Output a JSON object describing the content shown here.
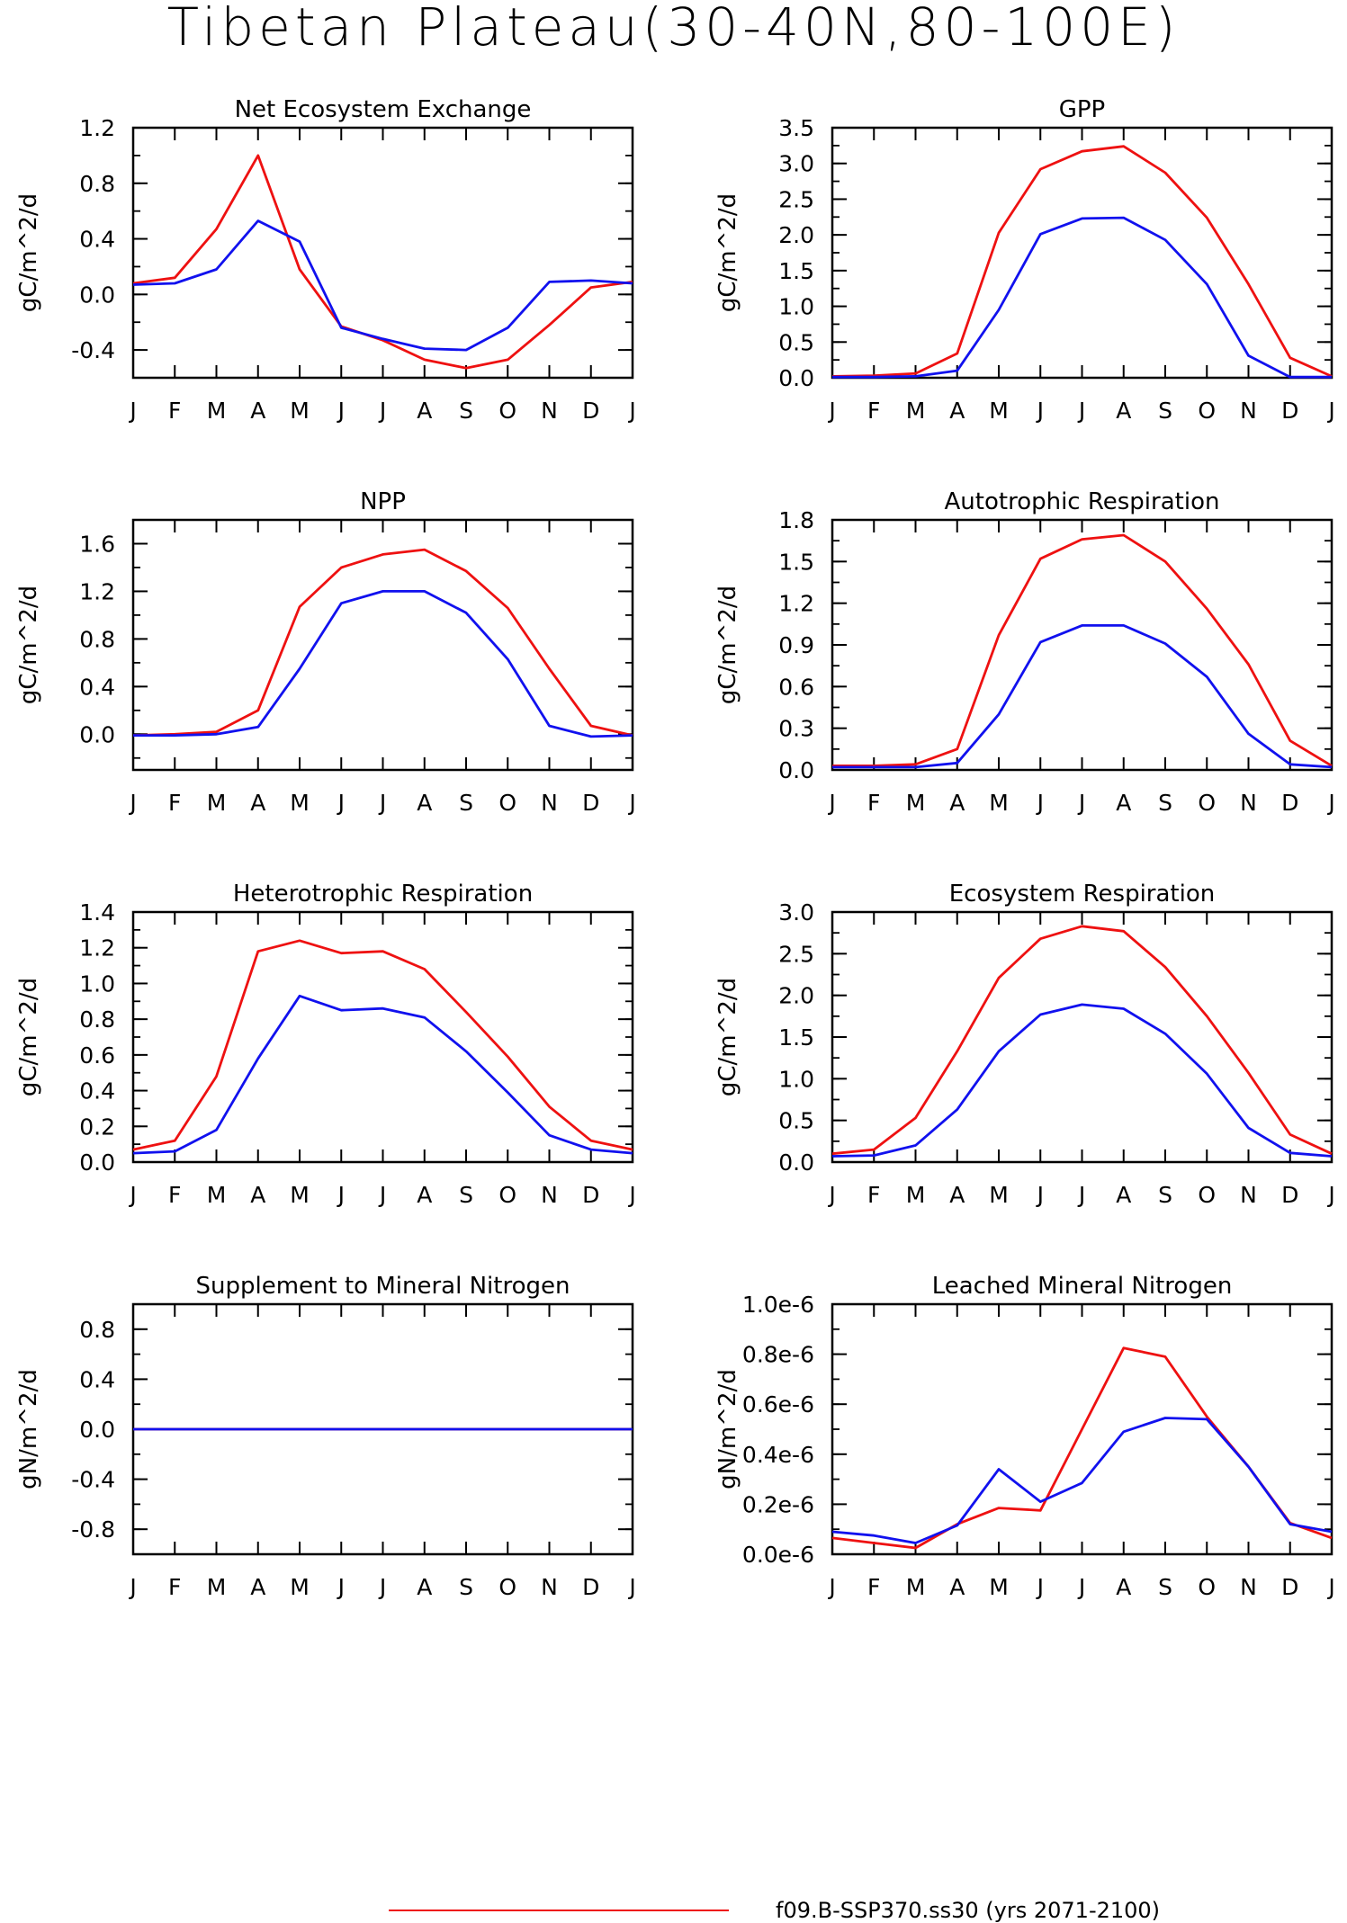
{
  "title": "Tibetan Plateau(30-40N,80-100E)",
  "colors": {
    "red": "#ee1111",
    "blue": "#1111ee",
    "axis": "#000000"
  },
  "legend": {
    "red_label": "f09.B-SSP370.ss30 (yrs 2071-2100)"
  },
  "chart_data": [
    {
      "type": "line",
      "title": "Net Ecosystem Exchange",
      "ylabel": "gC/m^2/d",
      "ylim": [
        -0.6,
        1.2
      ],
      "yticks": [
        -0.4,
        0.0,
        0.4,
        0.8,
        1.2
      ],
      "yticklabels": [
        "-0.4",
        "0.0",
        "0.4",
        "0.8",
        "1.2"
      ],
      "yminor": 0.2,
      "categories": [
        "J",
        "F",
        "M",
        "A",
        "M",
        "J",
        "J",
        "A",
        "S",
        "O",
        "N",
        "D",
        "J"
      ],
      "series": [
        {
          "color": "red",
          "values": [
            0.08,
            0.12,
            0.47,
            1.0,
            0.18,
            -0.23,
            -0.33,
            -0.47,
            -0.53,
            -0.47,
            -0.22,
            0.05,
            0.09
          ]
        },
        {
          "color": "blue",
          "values": [
            0.07,
            0.08,
            0.18,
            0.53,
            0.38,
            -0.24,
            -0.32,
            -0.39,
            -0.4,
            -0.24,
            0.09,
            0.1,
            0.08
          ]
        }
      ]
    },
    {
      "type": "line",
      "title": "GPP",
      "ylabel": "gC/m^2/d",
      "ylim": [
        0,
        3.5
      ],
      "yticks": [
        0,
        0.5,
        1.0,
        1.5,
        2.0,
        2.5,
        3.0,
        3.5
      ],
      "yticklabels": [
        "0.0",
        "0.5",
        "1.0",
        "1.5",
        "2.0",
        "2.5",
        "3.0",
        "3.5"
      ],
      "yminor": 0.25,
      "categories": [
        "J",
        "F",
        "M",
        "A",
        "M",
        "J",
        "J",
        "A",
        "S",
        "O",
        "N",
        "D",
        "J"
      ],
      "series": [
        {
          "color": "red",
          "values": [
            0.02,
            0.03,
            0.06,
            0.34,
            2.03,
            2.92,
            3.17,
            3.24,
            2.87,
            2.24,
            1.31,
            0.28,
            0.02
          ]
        },
        {
          "color": "blue",
          "values": [
            0.01,
            0.01,
            0.02,
            0.1,
            0.95,
            2.01,
            2.23,
            2.24,
            1.93,
            1.31,
            0.31,
            0.01,
            0.01
          ]
        }
      ]
    },
    {
      "type": "line",
      "title": "NPP",
      "ylabel": "gC/m^2/d",
      "ylim": [
        -0.3,
        1.8
      ],
      "yticks": [
        0.0,
        0.4,
        0.8,
        1.2,
        1.6
      ],
      "yticklabels": [
        "0.0",
        "0.4",
        "0.8",
        "1.2",
        "1.6"
      ],
      "yminor": 0.2,
      "categories": [
        "J",
        "F",
        "M",
        "A",
        "M",
        "J",
        "J",
        "A",
        "S",
        "O",
        "N",
        "D",
        "J"
      ],
      "series": [
        {
          "color": "red",
          "values": [
            -0.01,
            0.0,
            0.02,
            0.2,
            1.07,
            1.4,
            1.51,
            1.55,
            1.37,
            1.06,
            0.55,
            0.07,
            -0.01
          ]
        },
        {
          "color": "blue",
          "values": [
            -0.01,
            -0.01,
            0.0,
            0.06,
            0.55,
            1.1,
            1.2,
            1.2,
            1.02,
            0.63,
            0.07,
            -0.02,
            -0.01
          ]
        }
      ]
    },
    {
      "type": "line",
      "title": "Autotrophic Respiration",
      "ylabel": "gC/m^2/d",
      "ylim": [
        0,
        1.8
      ],
      "yticks": [
        0,
        0.3,
        0.6,
        0.9,
        1.2,
        1.5,
        1.8
      ],
      "yticklabels": [
        "0.0",
        "0.3",
        "0.6",
        "0.9",
        "1.2",
        "1.5",
        "1.8"
      ],
      "yminor": 0.15,
      "categories": [
        "J",
        "F",
        "M",
        "A",
        "M",
        "J",
        "J",
        "A",
        "S",
        "O",
        "N",
        "D",
        "J"
      ],
      "series": [
        {
          "color": "red",
          "values": [
            0.03,
            0.03,
            0.04,
            0.15,
            0.97,
            1.52,
            1.66,
            1.69,
            1.5,
            1.16,
            0.76,
            0.21,
            0.03
          ]
        },
        {
          "color": "blue",
          "values": [
            0.02,
            0.02,
            0.02,
            0.05,
            0.4,
            0.92,
            1.04,
            1.04,
            0.91,
            0.67,
            0.26,
            0.04,
            0.02
          ]
        }
      ]
    },
    {
      "type": "line",
      "title": "Heterotrophic Respiration",
      "ylabel": "gC/m^2/d",
      "ylim": [
        0,
        1.4
      ],
      "yticks": [
        0,
        0.2,
        0.4,
        0.6,
        0.8,
        1.0,
        1.2,
        1.4
      ],
      "yticklabels": [
        "0.0",
        "0.2",
        "0.4",
        "0.6",
        "0.8",
        "1.0",
        "1.2",
        "1.4"
      ],
      "yminor": 0.1,
      "categories": [
        "J",
        "F",
        "M",
        "A",
        "M",
        "J",
        "J",
        "A",
        "S",
        "O",
        "N",
        "D",
        "J"
      ],
      "series": [
        {
          "color": "red",
          "values": [
            0.07,
            0.12,
            0.48,
            1.18,
            1.24,
            1.17,
            1.18,
            1.08,
            0.84,
            0.59,
            0.31,
            0.12,
            0.07
          ]
        },
        {
          "color": "blue",
          "values": [
            0.05,
            0.06,
            0.18,
            0.58,
            0.93,
            0.85,
            0.86,
            0.81,
            0.62,
            0.39,
            0.15,
            0.07,
            0.05
          ]
        }
      ]
    },
    {
      "type": "line",
      "title": "Ecosystem Respiration",
      "ylabel": "gC/m^2/d",
      "ylim": [
        0,
        3.0
      ],
      "yticks": [
        0,
        0.5,
        1.0,
        1.5,
        2.0,
        2.5,
        3.0
      ],
      "yticklabels": [
        "0.0",
        "0.5",
        "1.0",
        "1.5",
        "2.0",
        "2.5",
        "3.0"
      ],
      "yminor": 0.25,
      "categories": [
        "J",
        "F",
        "M",
        "A",
        "M",
        "J",
        "J",
        "A",
        "S",
        "O",
        "N",
        "D",
        "J"
      ],
      "series": [
        {
          "color": "red",
          "values": [
            0.1,
            0.15,
            0.53,
            1.33,
            2.21,
            2.68,
            2.83,
            2.77,
            2.34,
            1.75,
            1.07,
            0.33,
            0.1
          ]
        },
        {
          "color": "blue",
          "values": [
            0.07,
            0.08,
            0.2,
            0.63,
            1.33,
            1.77,
            1.89,
            1.84,
            1.54,
            1.06,
            0.41,
            0.11,
            0.07
          ]
        }
      ]
    },
    {
      "type": "line",
      "title": "Supplement to Mineral Nitrogen",
      "ylabel": "gN/m^2/d",
      "ylim": [
        -1.0,
        1.0
      ],
      "yticks": [
        -0.8,
        -0.4,
        0.0,
        0.4,
        0.8
      ],
      "yticklabels": [
        "-0.8",
        "-0.4",
        "0.0",
        "0.4",
        "0.8"
      ],
      "yminor": 0.2,
      "categories": [
        "J",
        "F",
        "M",
        "A",
        "M",
        "J",
        "J",
        "A",
        "S",
        "O",
        "N",
        "D",
        "J"
      ],
      "series": [
        {
          "color": "red",
          "values": [
            0,
            0,
            0,
            0,
            0,
            0,
            0,
            0,
            0,
            0,
            0,
            0,
            0
          ]
        },
        {
          "color": "blue",
          "values": [
            0,
            0,
            0,
            0,
            0,
            0,
            0,
            0,
            0,
            0,
            0,
            0,
            0
          ]
        }
      ]
    },
    {
      "type": "line",
      "title": "Leached Mineral Nitrogen",
      "ylabel": "gN/m^2/d",
      "ylim": [
        0,
        1e-06
      ],
      "yticks": [
        0,
        2e-07,
        4e-07,
        6e-07,
        8e-07,
        1e-06
      ],
      "yticklabels": [
        "0.0e-6",
        "0.2e-6",
        "0.4e-6",
        "0.6e-6",
        "0.8e-6",
        "1.0e-6"
      ],
      "yminor": 1e-07,
      "categories": [
        "J",
        "F",
        "M",
        "A",
        "M",
        "J",
        "J",
        "A",
        "S",
        "O",
        "N",
        "D",
        "J"
      ],
      "series": [
        {
          "color": "red",
          "values": [
            6.5e-08,
            4.5e-08,
            2.5e-08,
            1.2e-07,
            1.85e-07,
            1.75e-07,
            5e-07,
            8.25e-07,
            7.9e-07,
            5.5e-07,
            3.5e-07,
            1.25e-07,
            6.5e-08
          ]
        },
        {
          "color": "blue",
          "values": [
            9e-08,
            7.5e-08,
            4.5e-08,
            1.15e-07,
            3.4e-07,
            2.1e-07,
            2.85e-07,
            4.9e-07,
            5.45e-07,
            5.4e-07,
            3.5e-07,
            1.2e-07,
            9e-08
          ]
        }
      ]
    }
  ]
}
